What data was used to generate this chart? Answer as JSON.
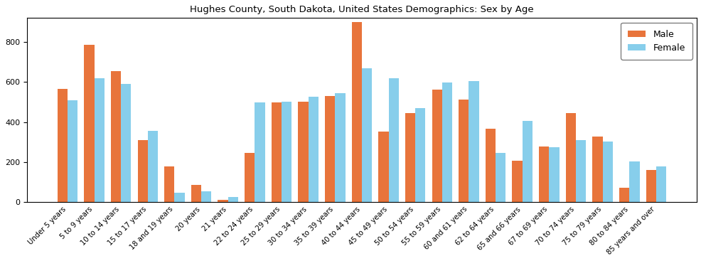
{
  "title": "Hughes County, South Dakota, United States Demographics: Sex by Age",
  "categories": [
    "Under 5 years",
    "5 to 9 years",
    "10 to 14 years",
    "15 to 17 years",
    "18 and 19 years",
    "20 years",
    "21 years",
    "22 to 24 years",
    "25 to 29 years",
    "30 to 34 years",
    "35 to 39 years",
    "40 to 44 years",
    "45 to 49 years",
    "50 to 54 years",
    "55 to 59 years",
    "60 and 61 years",
    "62 to 64 years",
    "65 and 66 years",
    "67 to 69 years",
    "70 to 74 years",
    "75 to 79 years",
    "80 to 84 years",
    "85 years and over"
  ],
  "male": [
    567,
    787,
    654,
    308,
    179,
    85,
    12,
    244,
    499,
    500,
    531,
    899,
    354,
    446,
    563,
    511,
    367,
    206,
    279,
    446,
    326,
    70,
    161
  ],
  "female": [
    507,
    619,
    590,
    357,
    46,
    55,
    27,
    497,
    500,
    528,
    543,
    668,
    619,
    469,
    597,
    606,
    247,
    406,
    275,
    311,
    303,
    204,
    178
  ],
  "male_color": "#e8743b",
  "female_color": "#87ceeb",
  "bar_width": 0.38,
  "ylim": [
    0,
    920
  ],
  "yticks": [
    0,
    200,
    400,
    600,
    800
  ],
  "legend_labels": [
    "Male",
    "Female"
  ],
  "figsize": [
    9.87,
    3.67
  ],
  "dpi": 100
}
